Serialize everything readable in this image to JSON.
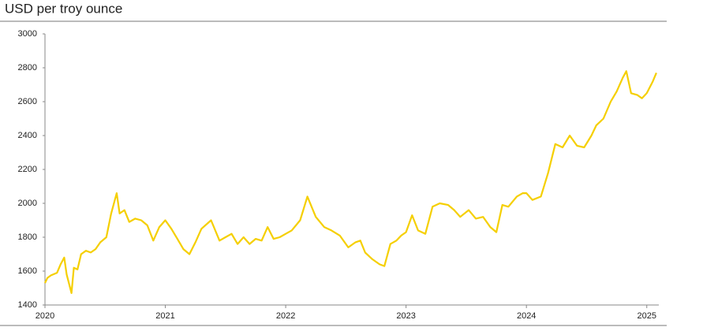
{
  "chart_data": {
    "type": "line",
    "title": "USD per troy ounce",
    "x": [
      2020.0,
      2020.02,
      2020.05,
      2020.1,
      2020.13,
      2020.16,
      2020.18,
      2020.22,
      2020.24,
      2020.27,
      2020.3,
      2020.34,
      2020.38,
      2020.42,
      2020.46,
      2020.51,
      2020.55,
      2020.596,
      2020.62,
      2020.66,
      2020.7,
      2020.75,
      2020.8,
      2020.85,
      2020.9,
      2020.95,
      2021.0,
      2021.05,
      2021.1,
      2021.15,
      2021.2,
      2021.25,
      2021.3,
      2021.38,
      2021.45,
      2021.5,
      2021.55,
      2021.6,
      2021.65,
      2021.7,
      2021.75,
      2021.8,
      2021.85,
      2021.9,
      2021.95,
      2022.0,
      2022.05,
      2022.12,
      2022.18,
      2022.25,
      2022.32,
      2022.38,
      2022.45,
      2022.52,
      2022.58,
      2022.62,
      2022.66,
      2022.72,
      2022.78,
      2022.82,
      2022.87,
      2022.92,
      2022.96,
      2023.0,
      2023.05,
      2023.1,
      2023.16,
      2023.22,
      2023.28,
      2023.35,
      2023.4,
      2023.45,
      2023.52,
      2023.58,
      2023.64,
      2023.7,
      2023.75,
      2023.8,
      2023.85,
      2023.92,
      2023.97,
      2024.0,
      2024.05,
      2024.12,
      2024.18,
      2024.24,
      2024.3,
      2024.36,
      2024.42,
      2024.48,
      2024.54,
      2024.58,
      2024.64,
      2024.7,
      2024.75,
      2024.8,
      2024.83,
      2024.87,
      2024.92,
      2024.96,
      2025.0,
      2025.05,
      2025.08
    ],
    "values": [
      1530,
      1560,
      1575,
      1590,
      1640,
      1680,
      1580,
      1470,
      1620,
      1610,
      1700,
      1720,
      1710,
      1730,
      1770,
      1800,
      1940,
      2060,
      1940,
      1960,
      1890,
      1910,
      1900,
      1870,
      1780,
      1860,
      1900,
      1850,
      1790,
      1730,
      1700,
      1770,
      1850,
      1900,
      1780,
      1800,
      1820,
      1760,
      1800,
      1760,
      1790,
      1780,
      1860,
      1790,
      1800,
      1820,
      1840,
      1900,
      2040,
      1920,
      1860,
      1840,
      1810,
      1740,
      1770,
      1780,
      1710,
      1670,
      1640,
      1630,
      1760,
      1780,
      1810,
      1830,
      1930,
      1840,
      1820,
      1980,
      2000,
      1990,
      1960,
      1920,
      1960,
      1910,
      1920,
      1860,
      1830,
      1990,
      1980,
      2040,
      2060,
      2060,
      2020,
      2040,
      2180,
      2350,
      2330,
      2400,
      2340,
      2330,
      2400,
      2460,
      2500,
      2600,
      2660,
      2740,
      2780,
      2650,
      2640,
      2620,
      2650,
      2720,
      2770
    ],
    "color": "#f5cf00",
    "xlim": [
      2020,
      2025.1
    ],
    "xticks": [
      2020,
      2021,
      2022,
      2023,
      2024,
      2025
    ],
    "ylim": [
      1400,
      3000
    ],
    "yticks": [
      1400,
      1600,
      1800,
      2000,
      2200,
      2400,
      2600,
      2800,
      3000
    ]
  }
}
